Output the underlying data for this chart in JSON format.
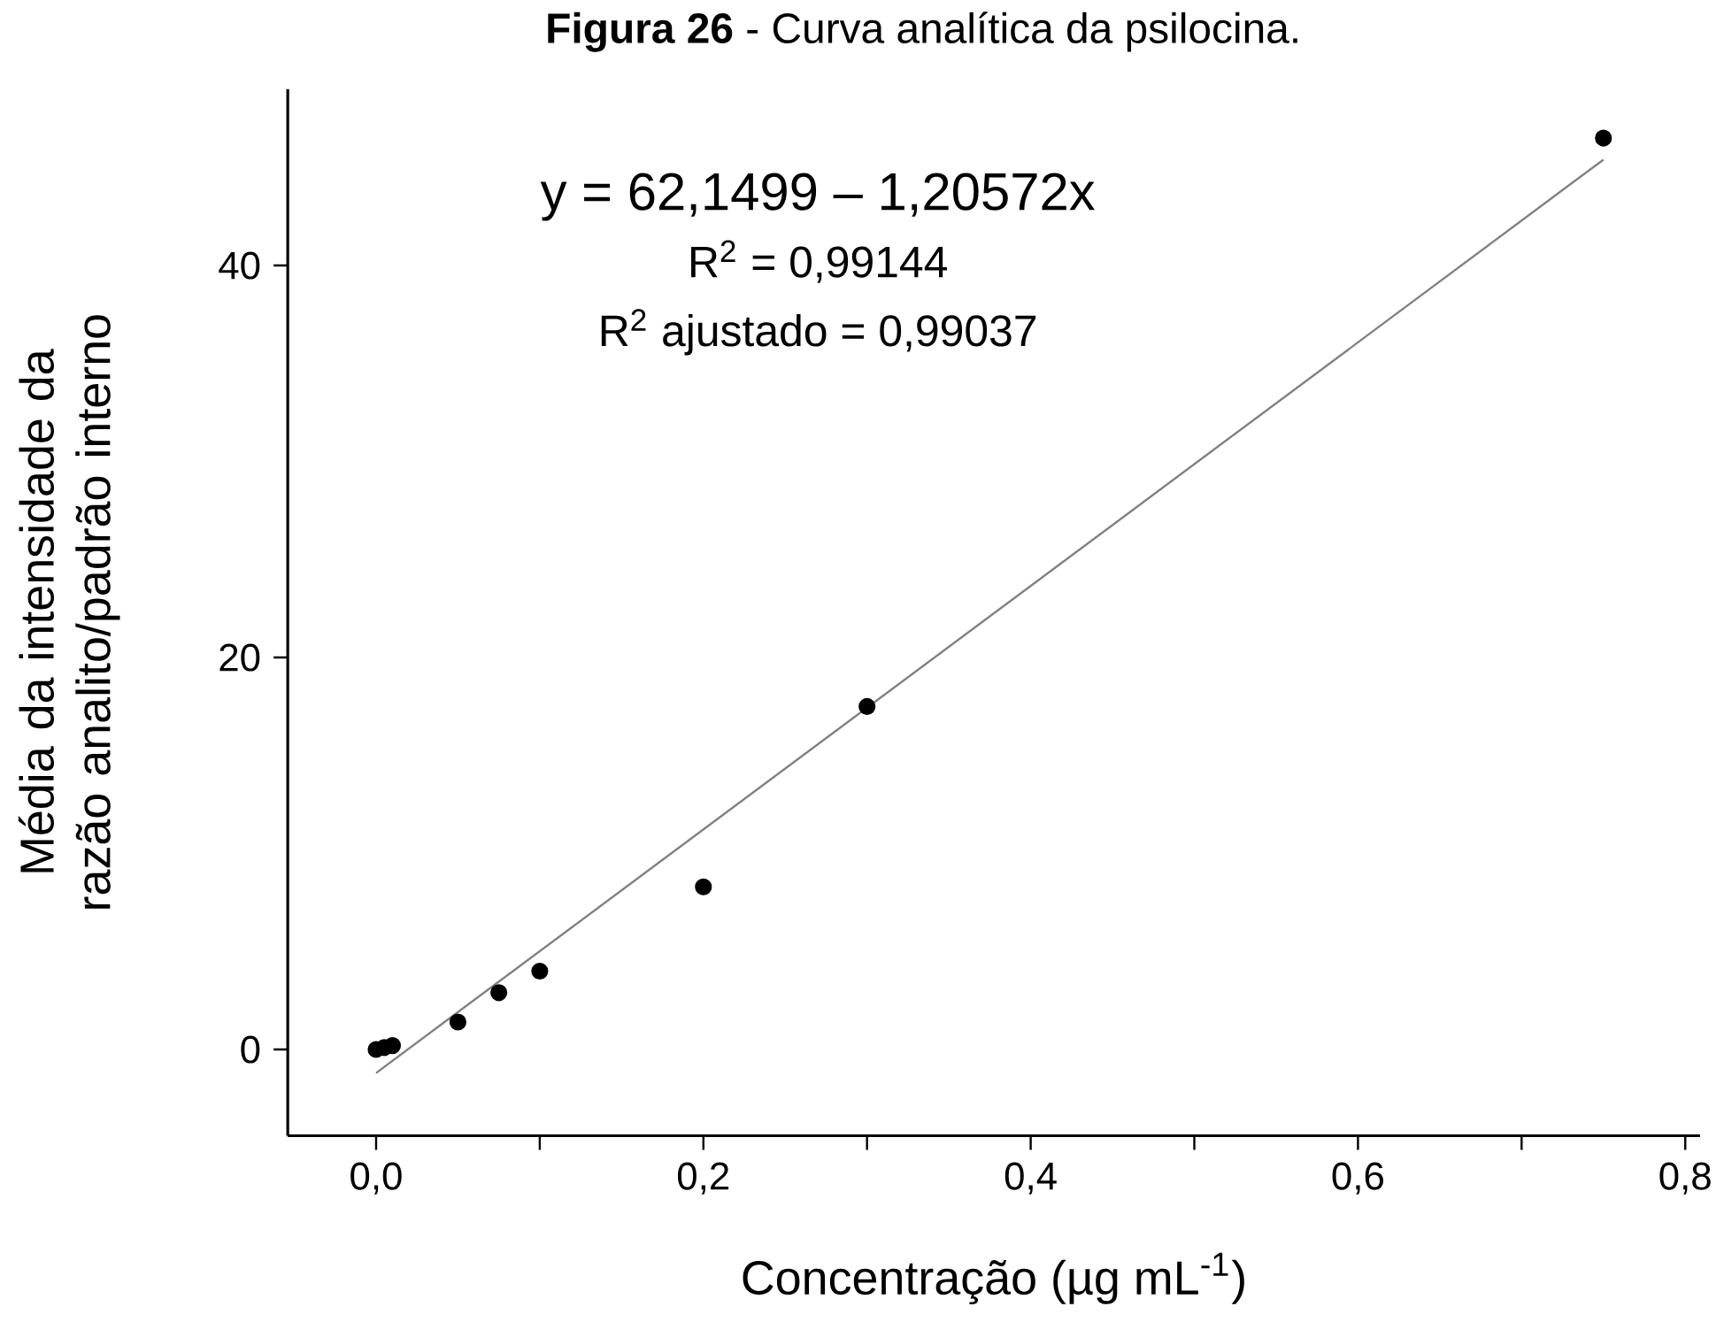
{
  "chart_data": {
    "type": "scatter",
    "title": "**Figura 26** - Curva analítica da psilocina.",
    "xlabel": "Concentração (µg mL$^{-1}$)",
    "ylabel": "Média da intensidade da razão analito/padrão interno",
    "annotations": [
      "y = 62,1499 – 1,20572x",
      "R$^{2}$ = 0,99144",
      "R$^{2}$ ajustado = 0,99037"
    ],
    "xlim": [
      -0.054,
      0.809
    ],
    "ylim": [
      -4.4,
      49
    ],
    "xticks": [
      {
        "value": 0,
        "label": "0,0"
      },
      {
        "value": 0.1,
        "label": null
      },
      {
        "value": 0.2,
        "label": "0,2"
      },
      {
        "value": 0.3,
        "label": null
      },
      {
        "value": 0.4,
        "label": "0,4"
      },
      {
        "value": 0.5,
        "label": null
      },
      {
        "value": 0.6,
        "label": "0,6"
      },
      {
        "value": 0.7,
        "label": null
      },
      {
        "value": 0.8,
        "label": "0,8"
      }
    ],
    "yticks": [
      0,
      20,
      40
    ],
    "grid": false,
    "series": [
      {
        "color": "#000000",
        "marker": "circle",
        "x": [
          0,
          0.005,
          0.01,
          0.05,
          0.075,
          0.1,
          0.2,
          0.3,
          0.75
        ],
        "values": [
          0,
          0.1,
          0.2,
          1.4,
          2.9,
          4.0,
          8.3,
          17.5,
          46.5
        ]
      },
      {
        "type": "line",
        "color": "#808080",
        "marker": "none",
        "line_style": "solid",
        "x": [
          0,
          0.75
        ],
        "values": [
          -1.2,
          45.4
        ]
      }
    ]
  }
}
